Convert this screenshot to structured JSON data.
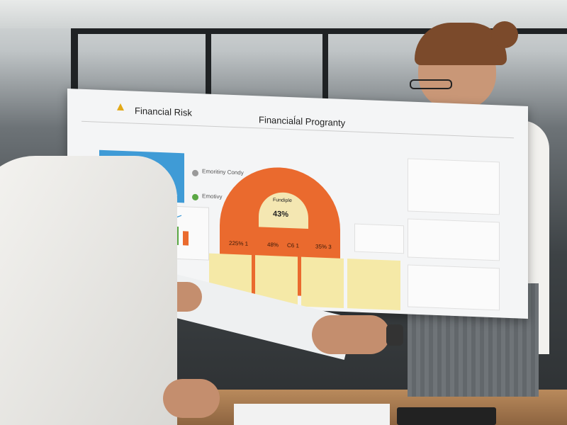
{
  "poster": {
    "title_left": "Financial Risk",
    "title_right": "Financiaĺal Progranty",
    "legend": [
      "Emoritiny Condy",
      "Emotivy"
    ],
    "gauge_label": "Fundiple",
    "gauge_value": "43%",
    "gauge_segments": [
      "225% 1",
      "48%",
      "C6 1",
      "35% 3"
    ],
    "colors": {
      "blue_chart": "#3f9bd6",
      "gauge": "#ea6a2e",
      "gauge_center": "#f4e7b2",
      "notes": "#f5e9a7"
    }
  }
}
